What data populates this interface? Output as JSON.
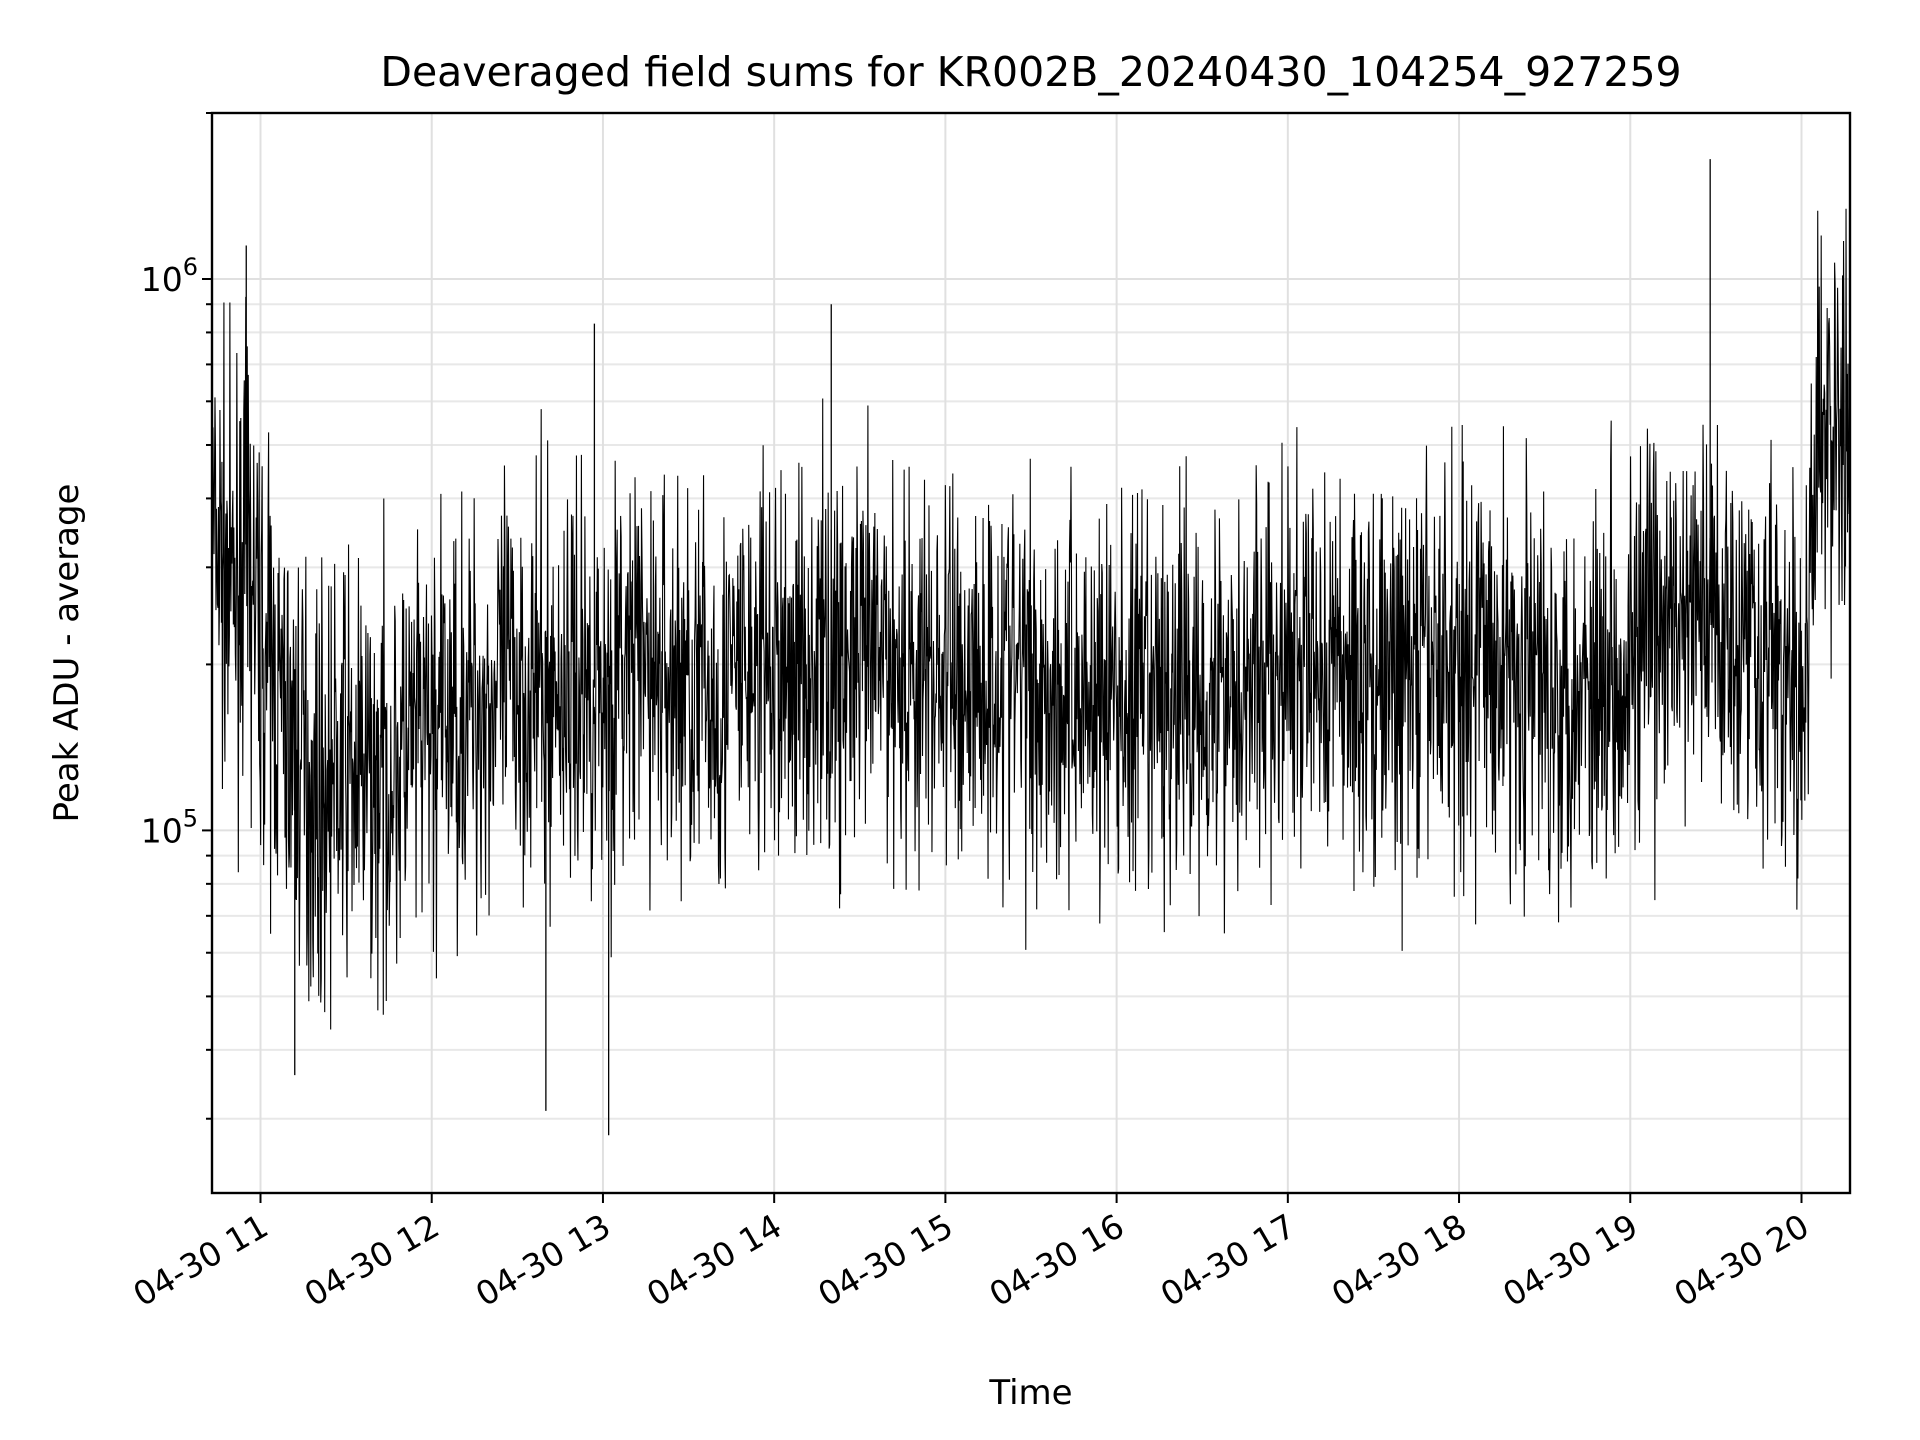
{
  "chart_data": {
    "type": "line",
    "title": "Deaveraged field sums for KR002B_20240430_104254_927259",
    "xlabel": "Time",
    "ylabel": "Peak ADU - average",
    "yscale": "log",
    "ylim": [
      22000,
      2000000
    ],
    "xlim": [
      "04-30 10:43",
      "04-30 20:17"
    ],
    "grid": true,
    "line_color": "#000000",
    "x_ticks": [
      "04-30 11",
      "04-30 12",
      "04-30 13",
      "04-30 14",
      "04-30 15",
      "04-30 16",
      "04-30 17",
      "04-30 18",
      "04-30 19",
      "04-30 20"
    ],
    "y_ticks": [
      {
        "value": 100000,
        "base": "10",
        "exp": "5"
      },
      {
        "value": 1000000,
        "base": "10",
        "exp": "6"
      }
    ],
    "series": [
      {
        "x": [
          "04-30 10:43",
          "04-30 10:50",
          "04-30 10:55",
          "04-30 11:00",
          "04-30 11:10",
          "04-30 11:20",
          "04-30 11:30",
          "04-30 11:40",
          "04-30 11:50",
          "04-30 12:00",
          "04-30 12:10",
          "04-30 12:20",
          "04-30 12:30",
          "04-30 12:40",
          "04-30 12:50",
          "04-30 13:00",
          "04-30 13:10",
          "04-30 13:20",
          "04-30 13:30",
          "04-30 13:40",
          "04-30 13:50",
          "04-30 14:00",
          "04-30 14:10",
          "04-30 14:20",
          "04-30 14:30",
          "04-30 14:40",
          "04-30 14:50",
          "04-30 15:00",
          "04-30 15:10",
          "04-30 15:20",
          "04-30 15:30",
          "04-30 15:40",
          "04-30 15:50",
          "04-30 16:00",
          "04-30 16:10",
          "04-30 16:20",
          "04-30 16:30",
          "04-30 16:40",
          "04-30 16:50",
          "04-30 17:00",
          "04-30 17:10",
          "04-30 17:20",
          "04-30 17:30",
          "04-30 17:40",
          "04-30 17:50",
          "04-30 18:00",
          "04-30 18:10",
          "04-30 18:20",
          "04-30 18:30",
          "04-30 18:40",
          "04-30 18:50",
          "04-30 19:00",
          "04-30 19:10",
          "04-30 19:20",
          "04-30 19:30",
          "04-30 19:40",
          "04-30 19:50",
          "04-30 20:00",
          "04-30 20:05",
          "04-30 20:10",
          "04-30 20:17"
        ],
        "y": [
          350000,
          260000,
          330000,
          220000,
          150000,
          115000,
          130000,
          120000,
          135000,
          150000,
          165000,
          170000,
          190000,
          175000,
          185000,
          180000,
          200000,
          190000,
          185000,
          170000,
          195000,
          190000,
          200000,
          205000,
          195000,
          210000,
          190000,
          195000,
          185000,
          200000,
          190000,
          175000,
          180000,
          170000,
          165000,
          175000,
          180000,
          185000,
          195000,
          185000,
          200000,
          195000,
          190000,
          185000,
          200000,
          205000,
          210000,
          195000,
          185000,
          180000,
          195000,
          210000,
          225000,
          240000,
          250000,
          235000,
          215000,
          150000,
          450000,
          560000,
          520000
        ],
        "spikes": [
          {
            "x": "04-30 10:55",
            "y": 1150000
          },
          {
            "x": "04-30 12:57",
            "y": 830000
          },
          {
            "x": "04-30 13:02",
            "y": 28000
          },
          {
            "x": "04-30 14:20",
            "y": 900000
          },
          {
            "x": "04-30 19:28",
            "y": 1650000
          },
          {
            "x": "04-30 11:12",
            "y": 36000
          },
          {
            "x": "04-30 12:40",
            "y": 31000
          }
        ]
      }
    ]
  }
}
